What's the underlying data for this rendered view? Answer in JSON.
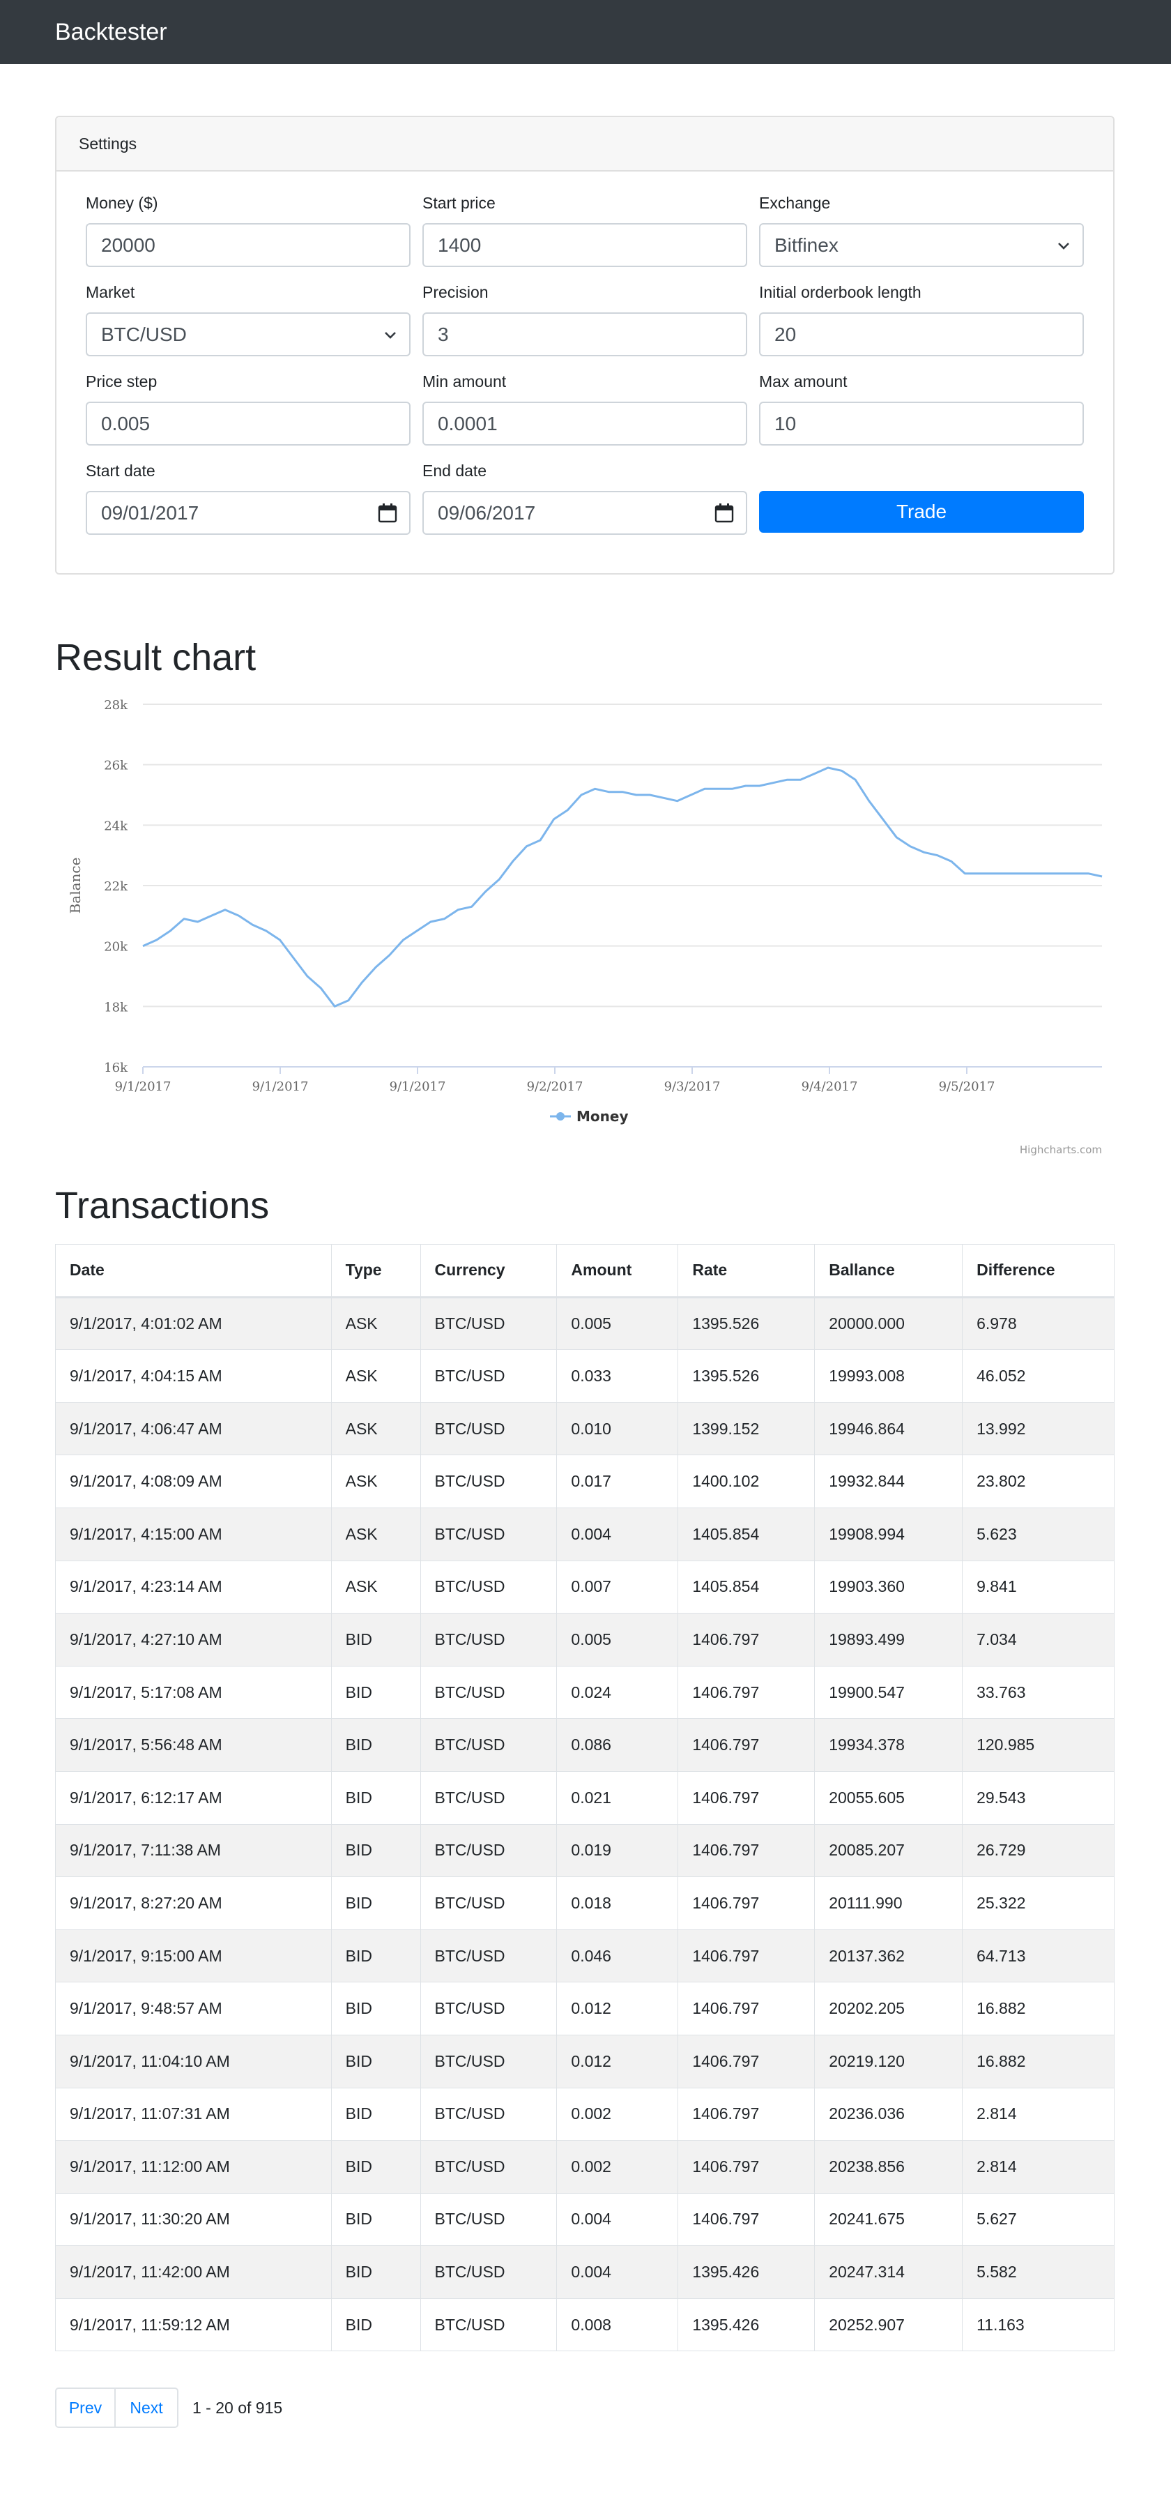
{
  "navbar": {
    "brand": "Backtester"
  },
  "settings": {
    "header": "Settings",
    "fields": {
      "money": {
        "label": "Money ($)",
        "value": "20000"
      },
      "start_price": {
        "label": "Start price",
        "value": "1400"
      },
      "exchange": {
        "label": "Exchange",
        "value": "Bitfinex"
      },
      "market": {
        "label": "Market",
        "value": "BTC/USD"
      },
      "precision": {
        "label": "Precision",
        "value": "3"
      },
      "orderbook_length": {
        "label": "Initial orderbook length",
        "value": "20"
      },
      "price_step": {
        "label": "Price step",
        "value": "0.005"
      },
      "min_amount": {
        "label": "Min amount",
        "value": "0.0001"
      },
      "max_amount": {
        "label": "Max amount",
        "value": "10"
      },
      "start_date": {
        "label": "Start date",
        "value": "09/01/2017"
      },
      "end_date": {
        "label": "End date",
        "value": "09/06/2017"
      }
    },
    "trade_label": "Trade"
  },
  "result_chart": {
    "heading": "Result chart",
    "credit": "Highcharts.com"
  },
  "chart_data": {
    "type": "line",
    "title": "",
    "xlabel": "",
    "ylabel": "Balance",
    "ylim": [
      16000,
      28000
    ],
    "yticks": [
      16000,
      18000,
      20000,
      22000,
      24000,
      26000,
      28000
    ],
    "ytick_labels": [
      "16k",
      "18k",
      "20k",
      "22k",
      "24k",
      "26k",
      "28k"
    ],
    "xtick_labels": [
      "9/1/2017",
      "9/1/2017",
      "9/1/2017",
      "9/2/2017",
      "9/3/2017",
      "9/4/2017",
      "9/5/2017"
    ],
    "legend_position": "bottom-center",
    "grid": true,
    "series_color": "#7cb5ec",
    "series": [
      {
        "name": "Money",
        "x": [
          0,
          0.1,
          0.2,
          0.3,
          0.4,
          0.5,
          0.6,
          0.7,
          0.8,
          0.9,
          1.0,
          1.1,
          1.2,
          1.3,
          1.4,
          1.5,
          1.6,
          1.7,
          1.8,
          1.9,
          2.0,
          2.1,
          2.2,
          2.3,
          2.4,
          2.5,
          2.6,
          2.7,
          2.8,
          2.9,
          3.0,
          3.1,
          3.2,
          3.3,
          3.4,
          3.5,
          3.6,
          3.7,
          3.8,
          3.9,
          4.0,
          4.1,
          4.2,
          4.3,
          4.4,
          4.5,
          4.6,
          4.7,
          4.8,
          4.9,
          5.0,
          5.1,
          5.2,
          5.3,
          5.4,
          5.5,
          5.6,
          5.7,
          5.8,
          5.9,
          6.0,
          6.1,
          6.2,
          6.3,
          6.4,
          6.5,
          6.6,
          6.7,
          6.8,
          6.9,
          7.0
        ],
        "values": [
          20000,
          20200,
          20500,
          20900,
          20800,
          21000,
          21200,
          21000,
          20700,
          20500,
          20200,
          19600,
          19000,
          18600,
          18000,
          18200,
          18800,
          19300,
          19700,
          20200,
          20500,
          20800,
          20900,
          21200,
          21300,
          21800,
          22200,
          22800,
          23300,
          23500,
          24200,
          24500,
          25000,
          25200,
          25100,
          25100,
          25000,
          25000,
          24900,
          24800,
          25000,
          25200,
          25200,
          25200,
          25300,
          25300,
          25400,
          25500,
          25500,
          25700,
          25900,
          25800,
          25500,
          24800,
          24200,
          23600,
          23300,
          23100,
          23000,
          22800,
          22400,
          22400,
          22400,
          22400,
          22400,
          22400,
          22400,
          22400,
          22400,
          22400,
          22300
        ]
      }
    ]
  },
  "transactions": {
    "heading": "Transactions",
    "columns": [
      "Date",
      "Type",
      "Currency",
      "Amount",
      "Rate",
      "Ballance",
      "Difference"
    ],
    "rows": [
      [
        "9/1/2017, 4:01:02 AM",
        "ASK",
        "BTC/USD",
        "0.005",
        "1395.526",
        "20000.000",
        "6.978"
      ],
      [
        "9/1/2017, 4:04:15 AM",
        "ASK",
        "BTC/USD",
        "0.033",
        "1395.526",
        "19993.008",
        "46.052"
      ],
      [
        "9/1/2017, 4:06:47 AM",
        "ASK",
        "BTC/USD",
        "0.010",
        "1399.152",
        "19946.864",
        "13.992"
      ],
      [
        "9/1/2017, 4:08:09 AM",
        "ASK",
        "BTC/USD",
        "0.017",
        "1400.102",
        "19932.844",
        "23.802"
      ],
      [
        "9/1/2017, 4:15:00 AM",
        "ASK",
        "BTC/USD",
        "0.004",
        "1405.854",
        "19908.994",
        "5.623"
      ],
      [
        "9/1/2017, 4:23:14 AM",
        "ASK",
        "BTC/USD",
        "0.007",
        "1405.854",
        "19903.360",
        "9.841"
      ],
      [
        "9/1/2017, 4:27:10 AM",
        "BID",
        "BTC/USD",
        "0.005",
        "1406.797",
        "19893.499",
        "7.034"
      ],
      [
        "9/1/2017, 5:17:08 AM",
        "BID",
        "BTC/USD",
        "0.024",
        "1406.797",
        "19900.547",
        "33.763"
      ],
      [
        "9/1/2017, 5:56:48 AM",
        "BID",
        "BTC/USD",
        "0.086",
        "1406.797",
        "19934.378",
        "120.985"
      ],
      [
        "9/1/2017, 6:12:17 AM",
        "BID",
        "BTC/USD",
        "0.021",
        "1406.797",
        "20055.605",
        "29.543"
      ],
      [
        "9/1/2017, 7:11:38 AM",
        "BID",
        "BTC/USD",
        "0.019",
        "1406.797",
        "20085.207",
        "26.729"
      ],
      [
        "9/1/2017, 8:27:20 AM",
        "BID",
        "BTC/USD",
        "0.018",
        "1406.797",
        "20111.990",
        "25.322"
      ],
      [
        "9/1/2017, 9:15:00 AM",
        "BID",
        "BTC/USD",
        "0.046",
        "1406.797",
        "20137.362",
        "64.713"
      ],
      [
        "9/1/2017, 9:48:57 AM",
        "BID",
        "BTC/USD",
        "0.012",
        "1406.797",
        "20202.205",
        "16.882"
      ],
      [
        "9/1/2017, 11:04:10 AM",
        "BID",
        "BTC/USD",
        "0.012",
        "1406.797",
        "20219.120",
        "16.882"
      ],
      [
        "9/1/2017, 11:07:31 AM",
        "BID",
        "BTC/USD",
        "0.002",
        "1406.797",
        "20236.036",
        "2.814"
      ],
      [
        "9/1/2017, 11:12:00 AM",
        "BID",
        "BTC/USD",
        "0.002",
        "1406.797",
        "20238.856",
        "2.814"
      ],
      [
        "9/1/2017, 11:30:20 AM",
        "BID",
        "BTC/USD",
        "0.004",
        "1406.797",
        "20241.675",
        "5.627"
      ],
      [
        "9/1/2017, 11:42:00 AM",
        "BID",
        "BTC/USD",
        "0.004",
        "1395.426",
        "20247.314",
        "5.582"
      ],
      [
        "9/1/2017, 11:59:12 AM",
        "BID",
        "BTC/USD",
        "0.008",
        "1395.426",
        "20252.907",
        "11.163"
      ]
    ]
  },
  "pagination": {
    "prev_label": "Prev",
    "next_label": "Next",
    "info": "1 - 20 of 915"
  }
}
